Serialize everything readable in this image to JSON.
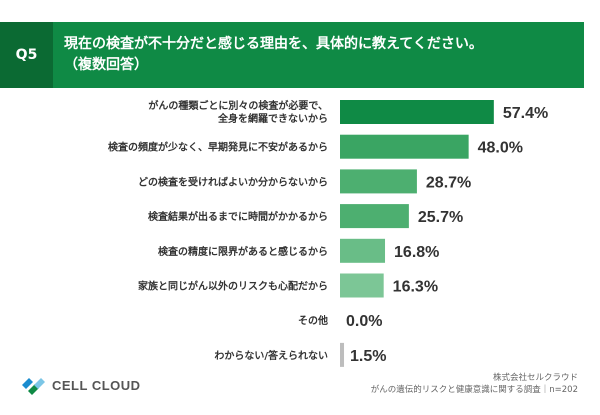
{
  "header": {
    "badge": "Q5",
    "title_line1": "現在の検査が不十分だと感じる理由を、具体的に教えてください。",
    "title_line2": "（複数回答）"
  },
  "chart_data": {
    "type": "bar",
    "orientation": "horizontal",
    "categories": [
      [
        "がんの種類ごとに別々の検査が必要で、",
        "全身を網羅できないから"
      ],
      [
        "検査の頻度が少なく、早期発見に不安があるから"
      ],
      [
        "どの検査を受ければよいか分からないから"
      ],
      [
        "検査結果が出るまでに時間がかかるから"
      ],
      [
        "検査の精度に限界があると感じるから"
      ],
      [
        "家族と同じがん以外のリスクも心配だから"
      ],
      [
        "その他"
      ],
      [
        "わからない/答えられない"
      ]
    ],
    "values": [
      57.4,
      48.0,
      28.7,
      25.7,
      16.8,
      16.3,
      0.0,
      1.5
    ],
    "value_labels": [
      "57.4%",
      "48.0%",
      "28.7%",
      "25.7%",
      "16.8%",
      "16.3%",
      "0.0%",
      "1.5%"
    ],
    "colors": [
      "#0f8a45",
      "#3aa563",
      "#4daf70",
      "#4daf70",
      "#69bd87",
      "#7cc696",
      "#bdbdbd",
      "#bdbdbd"
    ],
    "xlim": [
      0,
      60
    ],
    "grid": false,
    "legend": "none"
  },
  "logo": {
    "text": "CELL CLOUD"
  },
  "source": {
    "line1": "株式会社セルクラウド",
    "line2": "がんの遺伝的リスクと健康意識に関する調査｜n=202"
  }
}
